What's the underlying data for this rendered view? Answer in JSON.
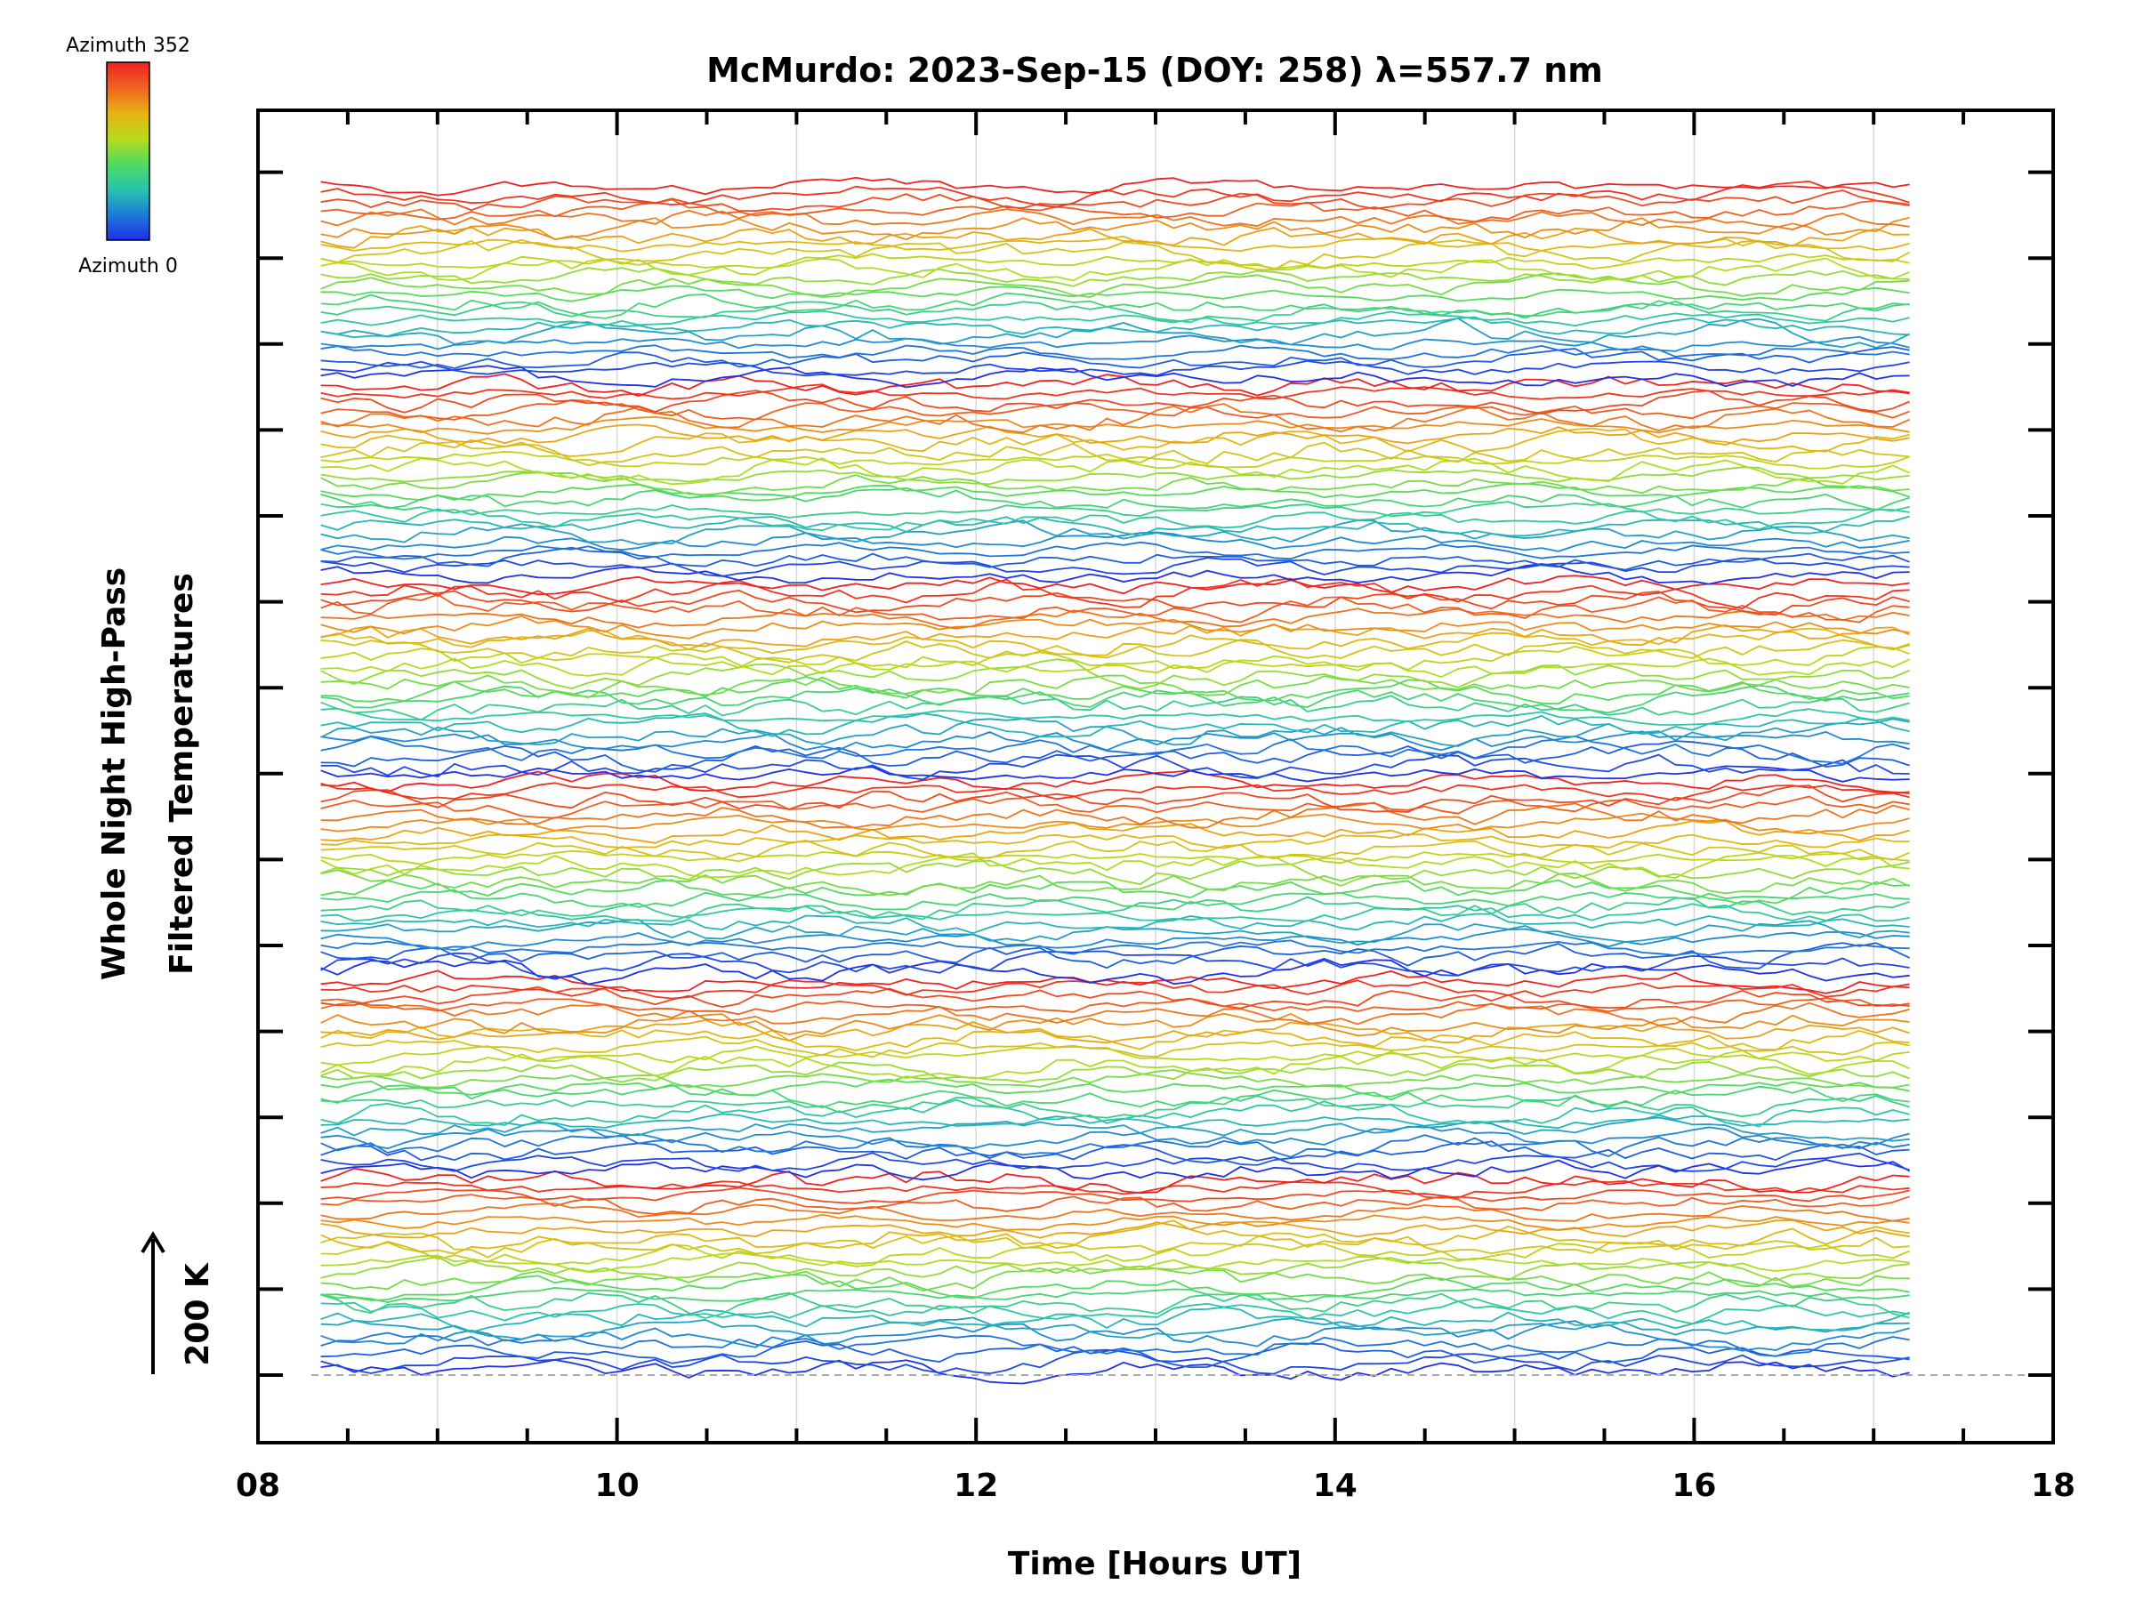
{
  "chart_data": {
    "type": "line",
    "title": "McMurdo: 2023-Sep-15 (DOY: 258) λ=557.7 nm",
    "xlabel": "Time [Hours UT]",
    "ylabel_line1": "Whole Night High-Pass",
    "ylabel_line2": "Filtered Temperatures",
    "xlim": [
      8,
      18
    ],
    "x_ticks": [
      8,
      10,
      12,
      14,
      16,
      18
    ],
    "x_tick_labels": [
      "08",
      "10",
      "12",
      "14",
      "16",
      "18"
    ],
    "x_data_range": [
      8.35,
      17.2
    ],
    "n_samples": 96,
    "n_traces": 144,
    "trace_groups": 6,
    "y_ticks": 15,
    "scale_label": "200 K",
    "colorbar": {
      "top_label": "Azimuth 352",
      "bottom_label": "Azimuth 0",
      "stops": [
        "#1f30e6",
        "#1e7ad8",
        "#27c4b0",
        "#52da60",
        "#b6dc1e",
        "#e8b214",
        "#ee6420",
        "#ee2222"
      ]
    },
    "grid": true,
    "baseline_dashed": true
  }
}
